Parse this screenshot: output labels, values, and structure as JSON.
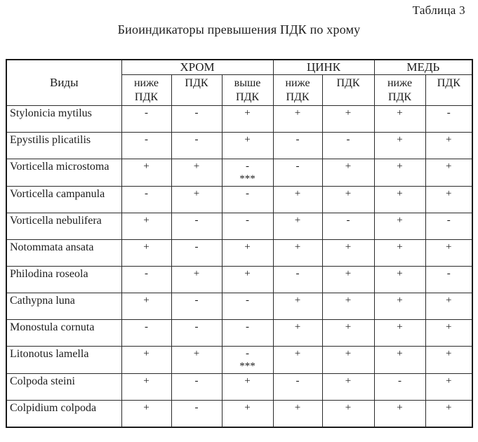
{
  "page": {
    "table_label": "Таблица 3",
    "title": "Биоиндикаторы превышения ПДК по хрому"
  },
  "table": {
    "species_header": "Виды",
    "groups": [
      {
        "label": "ХРОМ",
        "span": 3
      },
      {
        "label": "ЦИНК",
        "span": 2
      },
      {
        "label": "МЕДЬ",
        "span": 2
      }
    ],
    "subheaders": [
      "ниже\nПДК",
      "ПДК",
      "выше\nПДК",
      "ниже\nПДК",
      "ПДК",
      "ниже\nПДК",
      "ПДК"
    ],
    "rows": [
      {
        "species": "Stylonicia mytilus",
        "values": [
          "-",
          "-",
          "+",
          "+",
          "+",
          "+",
          "-"
        ]
      },
      {
        "species": "Epystilis plicatilis",
        "values": [
          "-",
          "-",
          "+",
          "-",
          "-",
          "+",
          "+"
        ]
      },
      {
        "species": "Vorticella microstoma",
        "values": [
          "+",
          "+",
          "-\n***",
          "-",
          "+",
          "+",
          "+"
        ]
      },
      {
        "species": "Vorticella campanula",
        "values": [
          "-",
          "+",
          "-",
          "+",
          "+",
          "+",
          "+"
        ]
      },
      {
        "species": "Vorticella nebulifera",
        "values": [
          "+",
          "-",
          "-",
          "+",
          "-",
          "+",
          "-"
        ]
      },
      {
        "species": "Notommata ansata",
        "values": [
          "+",
          "-",
          "+",
          "+",
          "+",
          "+",
          "+"
        ]
      },
      {
        "species": "Philodina roseola",
        "values": [
          "-",
          "+",
          "+",
          "-",
          "+",
          "+",
          "-"
        ]
      },
      {
        "species": "Cathypna luna",
        "values": [
          "+",
          "-",
          "-",
          "+",
          "+",
          "+",
          "+"
        ]
      },
      {
        "species": "Monostula cornuta",
        "values": [
          "-",
          "-",
          "-",
          "+",
          "+",
          "+",
          "+"
        ]
      },
      {
        "species": "Litonotus lamella",
        "values": [
          "+",
          "+",
          "-\n***",
          "+",
          "+",
          "+",
          "+"
        ]
      },
      {
        "species": "Colpoda steini",
        "values": [
          "+",
          "-",
          "+",
          "-",
          "+",
          "-",
          "+"
        ]
      },
      {
        "species": "Colpidium colpoda",
        "values": [
          "+",
          "-",
          "+",
          "+",
          "+",
          "+",
          "+"
        ]
      }
    ]
  }
}
